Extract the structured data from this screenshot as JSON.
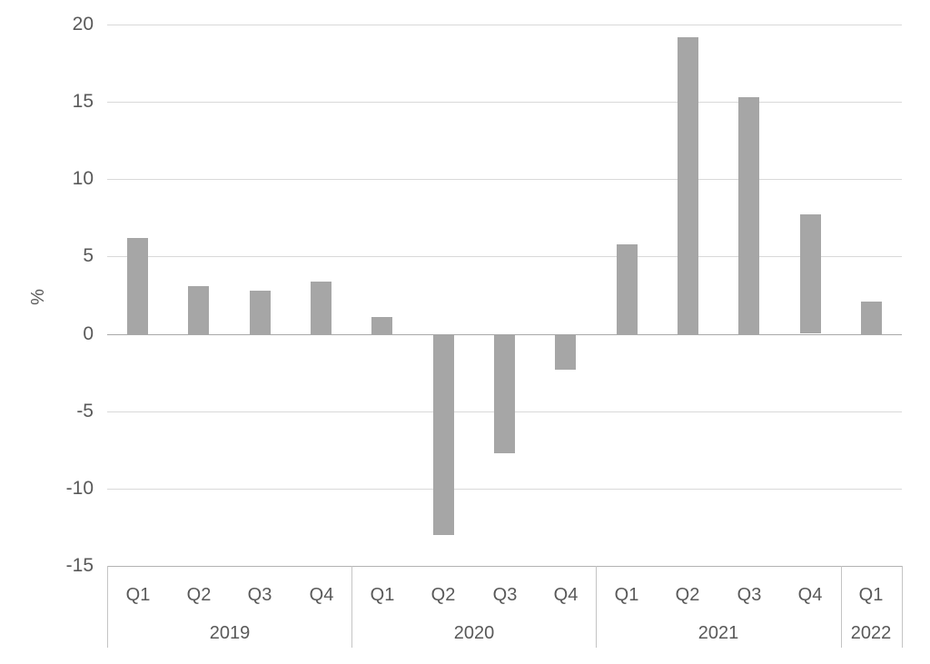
{
  "chart_data": {
    "type": "bar",
    "title": "",
    "xlabel": "",
    "ylabel": "%",
    "ylim": [
      -15,
      20
    ],
    "ytick_step": 5,
    "yticks": [
      20,
      15,
      10,
      5,
      0,
      -5,
      -10,
      -15
    ],
    "grid": true,
    "legend": false,
    "bar_color": "#a6a6a6",
    "gridline_color": "#d9d9d9",
    "zero_line_color": "#a9a9a9",
    "axis_band_line_color": "#b3b3b3",
    "text_color": "#595959",
    "groups": [
      {
        "year": "2019",
        "quarters": [
          "Q1",
          "Q2",
          "Q3",
          "Q4"
        ],
        "values": [
          6.2,
          3.1,
          2.8,
          3.4
        ]
      },
      {
        "year": "2020",
        "quarters": [
          "Q1",
          "Q2",
          "Q3",
          "Q4"
        ],
        "values": [
          1.1,
          -13.0,
          -7.7,
          -2.3
        ]
      },
      {
        "year": "2021",
        "quarters": [
          "Q1",
          "Q2",
          "Q3",
          "Q4"
        ],
        "values": [
          5.8,
          19.2,
          15.3,
          7.7
        ]
      },
      {
        "year": "2022",
        "quarters": [
          "Q1"
        ],
        "values": [
          2.1
        ]
      }
    ],
    "categories": [
      "Q1",
      "Q2",
      "Q3",
      "Q4",
      "Q1",
      "Q2",
      "Q3",
      "Q4",
      "Q1",
      "Q2",
      "Q3",
      "Q4",
      "Q1"
    ],
    "values": [
      6.2,
      3.1,
      2.8,
      3.4,
      1.1,
      -13.0,
      -7.7,
      -2.3,
      5.8,
      19.2,
      15.3,
      7.7,
      2.1
    ]
  }
}
